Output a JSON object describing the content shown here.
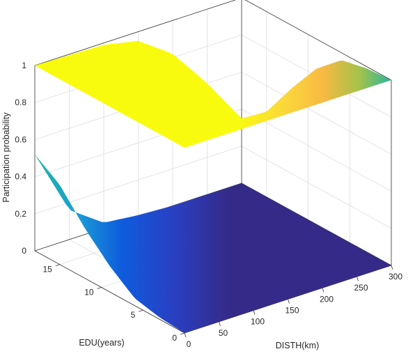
{
  "chart_data": {
    "type": "surface",
    "title": "",
    "xlabel": "DISTH(km)",
    "ylabel": "EDU(years)",
    "zlabel": "Participation probability",
    "xlim": [
      0,
      300
    ],
    "ylim": [
      0,
      18
    ],
    "zlim": [
      0,
      1
    ],
    "x_ticks": [
      0,
      50,
      100,
      150,
      200,
      250,
      300
    ],
    "y_ticks": [
      0,
      5,
      10,
      15
    ],
    "z_ticks": [
      0,
      0.2,
      0.4,
      0.6,
      0.8,
      1
    ],
    "grid": true,
    "colormap": "parula",
    "series": [
      {
        "corners": {
          "x0_y18": 0.52,
          "x0_y0": 0.0,
          "x300_y0": 0.0,
          "x300_y18": 0.0
        },
        "edge_x0": [
          [
            0,
            0.0
          ],
          [
            3,
            0.01
          ],
          [
            6,
            0.04
          ],
          [
            9,
            0.14
          ],
          [
            12,
            0.27
          ],
          [
            15,
            0.43
          ],
          [
            18,
            0.52
          ]
        ],
        "edge_y18": [
          [
            0,
            0.52
          ],
          [
            50,
            0.16
          ],
          [
            100,
            0.03
          ],
          [
            150,
            0.01
          ],
          [
            200,
            0.0
          ],
          [
            250,
            0.0
          ],
          [
            300,
            0.0
          ]
        ]
      },
      {
        "corners": {
          "x0_y18": 1.0,
          "x0_y0": 1.0,
          "x300_y0": 1.0,
          "x300_y18": 0.35
        },
        "edge_x300": [
          [
            0,
            1.0
          ],
          [
            3,
            0.99
          ],
          [
            6,
            0.96
          ],
          [
            9,
            0.84
          ],
          [
            12,
            0.66
          ],
          [
            15,
            0.46
          ],
          [
            18,
            0.35
          ]
        ],
        "edge_y18": [
          [
            0,
            1.0
          ],
          [
            100,
            0.99
          ],
          [
            150,
            0.95
          ],
          [
            200,
            0.82
          ],
          [
            250,
            0.6
          ],
          [
            300,
            0.35
          ]
        ]
      }
    ],
    "colors": {
      "low": "#352a87",
      "mid_low": "#0f5cdd",
      "mid": "#1fb6a0",
      "mid_high": "#f8ba43",
      "high": "#f9fb0e"
    }
  }
}
